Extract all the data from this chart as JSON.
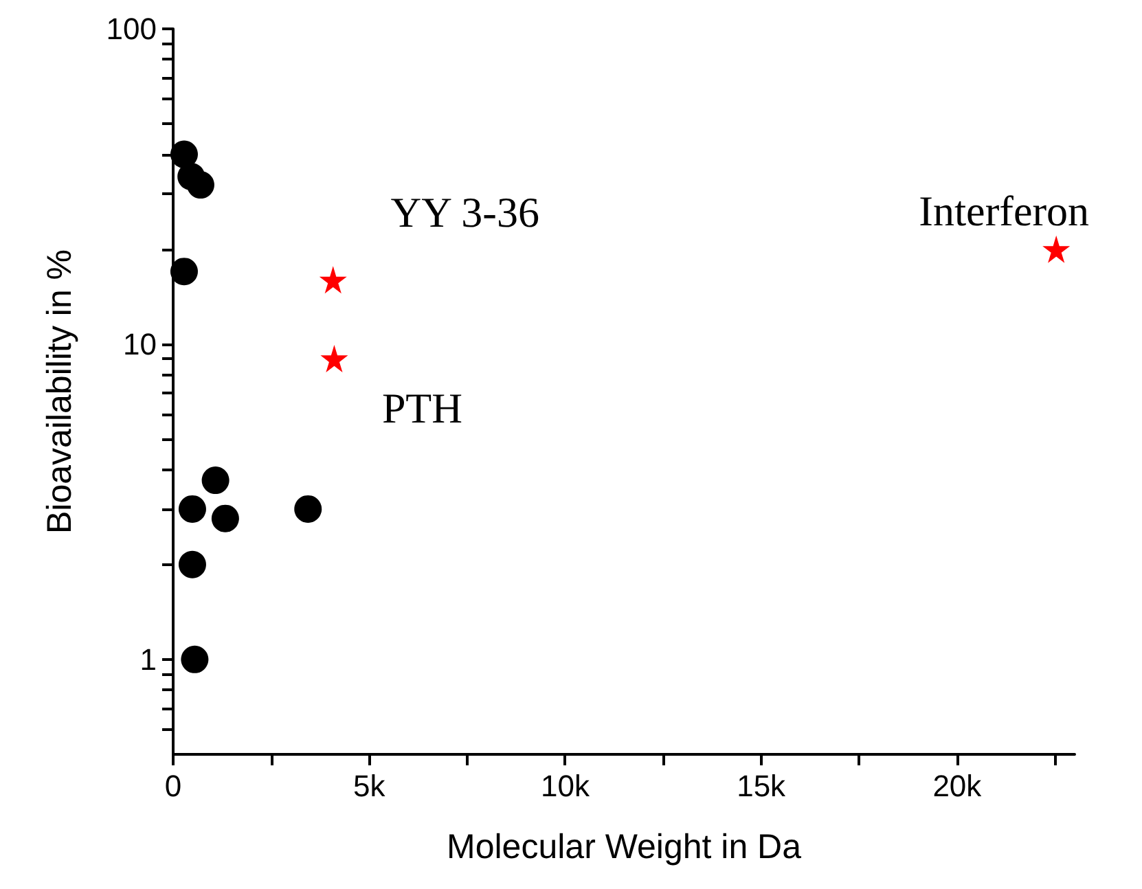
{
  "chart_data": {
    "type": "scatter",
    "xlabel": "Molecular Weight in Da",
    "ylabel": "Bioavailability in %",
    "log": "y",
    "grid": false,
    "xlim": [
      0,
      23000
    ],
    "xticks": [
      0,
      {
        "value": 2500,
        "label": null
      },
      {
        "value": 5000,
        "label": "5k"
      },
      {
        "value": 7500,
        "label": null
      },
      {
        "value": 10000,
        "label": "10k"
      },
      {
        "value": 12500,
        "label": null
      },
      {
        "value": 15000,
        "label": "15k"
      },
      {
        "value": 17500,
        "label": null
      },
      {
        "value": 20000,
        "label": "20k"
      },
      {
        "value": 22500,
        "label": null
      }
    ],
    "ylim": [
      0.5,
      100
    ],
    "yticks": [
      {
        "value": 0.6,
        "label": null
      },
      {
        "value": 0.7,
        "label": null
      },
      {
        "value": 0.8,
        "label": null
      },
      {
        "value": 0.9,
        "label": null
      },
      1,
      {
        "value": 2,
        "label": null
      },
      {
        "value": 3,
        "label": null
      },
      {
        "value": 4,
        "label": null
      },
      {
        "value": 5,
        "label": null
      },
      {
        "value": 6,
        "label": null
      },
      {
        "value": 7,
        "label": null
      },
      {
        "value": 8,
        "label": null
      },
      {
        "value": 9,
        "label": null
      },
      10,
      {
        "value": 20,
        "label": null
      },
      {
        "value": 30,
        "label": null
      },
      {
        "value": 40,
        "label": null
      },
      {
        "value": 50,
        "label": null
      },
      {
        "value": 60,
        "label": null
      },
      {
        "value": 70,
        "label": null
      },
      {
        "value": 80,
        "label": null
      },
      {
        "value": 90,
        "label": null
      },
      100
    ],
    "series": [
      {
        "color": "#000000",
        "marker": "circle",
        "x": [
          280,
          460,
          700,
          280,
          1080,
          490,
          1330,
          3440,
          490,
          550
        ],
        "values": [
          40,
          34,
          32,
          17,
          3.7,
          3.0,
          2.8,
          3.0,
          2.0,
          1.0
        ]
      },
      {
        "color": "#ff0000",
        "marker": "star",
        "x": [
          4080,
          4110,
          22530
        ],
        "values": [
          16,
          9.0,
          20
        ]
      }
    ],
    "annotations": [
      {
        "text": "YY 3-36",
        "x": 4080,
        "y": 16
      },
      {
        "text": "PTH",
        "x": 4110,
        "y": 9.0
      },
      {
        "text": "Interferon",
        "x": 22530,
        "y": 20
      }
    ]
  }
}
